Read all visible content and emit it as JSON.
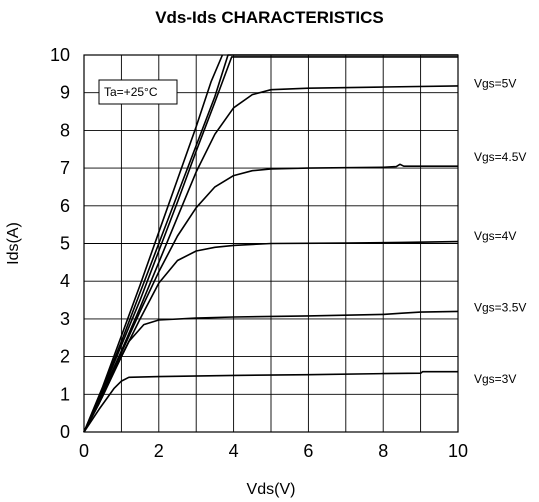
{
  "chart_data": {
    "type": "line",
    "title": "Vds-Ids CHARACTERISTICS",
    "xlabel": "Vds(V)",
    "ylabel": "Ids(A)",
    "xlim": [
      0,
      10
    ],
    "ylim": [
      0,
      10
    ],
    "x_ticks": [
      0,
      2,
      4,
      6,
      8,
      10
    ],
    "y_ticks": [
      0,
      1,
      2,
      3,
      4,
      5,
      6,
      7,
      8,
      9,
      10
    ],
    "grid": true,
    "annotation": "Ta=+25°C",
    "series": [
      {
        "name": "Vgs=3V",
        "label_y": 1.4,
        "points": [
          [
            0,
            0
          ],
          [
            0.4,
            0.6
          ],
          [
            0.8,
            1.15
          ],
          [
            1.0,
            1.35
          ],
          [
            1.2,
            1.45
          ],
          [
            2,
            1.47
          ],
          [
            4,
            1.5
          ],
          [
            6,
            1.52
          ],
          [
            8,
            1.55
          ],
          [
            9,
            1.56
          ],
          [
            9.05,
            1.6
          ],
          [
            10,
            1.6
          ]
        ]
      },
      {
        "name": "Vgs=3.5V",
        "label_y": 3.3,
        "points": [
          [
            0,
            0
          ],
          [
            0.4,
            0.75
          ],
          [
            0.8,
            1.6
          ],
          [
            1.2,
            2.4
          ],
          [
            1.6,
            2.85
          ],
          [
            2,
            2.97
          ],
          [
            3,
            3.02
          ],
          [
            4,
            3.05
          ],
          [
            6,
            3.08
          ],
          [
            8,
            3.12
          ],
          [
            8.5,
            3.15
          ],
          [
            9,
            3.18
          ],
          [
            10,
            3.2
          ]
        ]
      },
      {
        "name": "Vgs=4V",
        "label_y": 5.2,
        "points": [
          [
            0,
            0
          ],
          [
            0.5,
            0.95
          ],
          [
            1,
            2.0
          ],
          [
            1.5,
            3.0
          ],
          [
            2,
            3.95
          ],
          [
            2.5,
            4.55
          ],
          [
            3,
            4.8
          ],
          [
            3.5,
            4.9
          ],
          [
            4,
            4.95
          ],
          [
            5,
            5.0
          ],
          [
            7,
            5.01
          ],
          [
            8.5,
            5.03
          ],
          [
            10,
            5.05
          ]
        ]
      },
      {
        "name": "Vgs=4.5V",
        "label_y": 7.3,
        "points": [
          [
            0,
            0
          ],
          [
            0.5,
            1.0
          ],
          [
            1,
            2.1
          ],
          [
            1.5,
            3.2
          ],
          [
            2,
            4.25
          ],
          [
            2.5,
            5.2
          ],
          [
            3,
            5.95
          ],
          [
            3.5,
            6.5
          ],
          [
            4,
            6.8
          ],
          [
            4.5,
            6.93
          ],
          [
            5,
            6.98
          ],
          [
            6,
            7.0
          ],
          [
            8,
            7.02
          ],
          [
            8.35,
            7.04
          ],
          [
            8.45,
            7.1
          ],
          [
            8.55,
            7.05
          ],
          [
            10,
            7.05
          ]
        ]
      },
      {
        "name": "Vgs=5V",
        "label_y": 9.25,
        "points": [
          [
            0,
            0
          ],
          [
            0.5,
            1.05
          ],
          [
            1,
            2.15
          ],
          [
            1.5,
            3.3
          ],
          [
            2,
            4.5
          ],
          [
            2.5,
            5.7
          ],
          [
            3,
            6.9
          ],
          [
            3.5,
            7.9
          ],
          [
            4,
            8.6
          ],
          [
            4.5,
            8.95
          ],
          [
            5,
            9.08
          ],
          [
            6,
            9.12
          ],
          [
            8,
            9.15
          ],
          [
            10,
            9.18
          ]
        ]
      },
      {
        "name": "",
        "label_y": null,
        "points": [
          [
            0,
            0
          ],
          [
            0.5,
            1.1
          ],
          [
            1,
            2.3
          ],
          [
            1.5,
            3.5
          ],
          [
            2,
            4.8
          ],
          [
            2.5,
            6.1
          ],
          [
            3,
            7.45
          ],
          [
            3.5,
            8.75
          ],
          [
            3.95,
            9.95
          ],
          [
            10,
            9.95
          ]
        ]
      },
      {
        "name": "",
        "label_y": null,
        "points": [
          [
            0,
            0
          ],
          [
            0.5,
            1.15
          ],
          [
            1,
            2.4
          ],
          [
            1.5,
            3.7
          ],
          [
            2,
            5.0
          ],
          [
            2.5,
            6.3
          ],
          [
            3,
            7.6
          ],
          [
            3.5,
            8.9
          ],
          [
            3.85,
            10
          ],
          [
            10,
            10
          ]
        ]
      },
      {
        "name": "",
        "label_y": null,
        "points": [
          [
            0,
            0
          ],
          [
            0.5,
            1.2
          ],
          [
            1,
            2.55
          ],
          [
            1.5,
            3.9
          ],
          [
            2,
            5.3
          ],
          [
            2.5,
            6.7
          ],
          [
            3,
            8.1
          ],
          [
            3.4,
            9.3
          ],
          [
            3.7,
            10
          ]
        ]
      }
    ]
  }
}
